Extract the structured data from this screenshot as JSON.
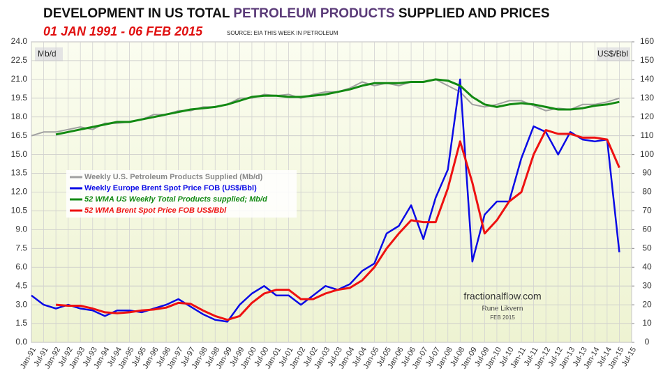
{
  "chart_data": {
    "type": "line",
    "title": [
      "DEVELOPMENT IN US TOTAL ",
      "PETROLEUM PRODUCTS",
      " SUPPLIED AND PRICES"
    ],
    "subtitle": "01 JAN 1991 - 06 FEB 2015",
    "source": "SOURCE: EIA THIS WEEK IN PETROLEUM",
    "y_label": "Mb/d",
    "y2_label": "US$/Bbl",
    "annotations": [
      "fractionalflow.com",
      "Rune Likvern",
      "FEB 2015"
    ],
    "categories": [
      "Jan-91",
      "Jul-91",
      "Jan-92",
      "Jul-92",
      "Jan-93",
      "Jul-93",
      "Jan-94",
      "Jul-94",
      "Jan-95",
      "Jul-95",
      "Jan-96",
      "Jul-96",
      "Jan-97",
      "Jul-97",
      "Jan-98",
      "Jul-98",
      "Jan-99",
      "Jul-99",
      "Jan-00",
      "Jul-00",
      "Jan-01",
      "Jul-01",
      "Jan-02",
      "Jul-02",
      "Jan-03",
      "Jul-03",
      "Jan-04",
      "Jul-04",
      "Jan-05",
      "Jul-05",
      "Jan-06",
      "Jul-06",
      "Jan-07",
      "Jul-07",
      "Jan-08",
      "Jul-08",
      "Jan-09",
      "Jul-09",
      "Jan-10",
      "Jul-10",
      "Jan-11",
      "Jul-11",
      "Jan-12",
      "Jul-12",
      "Jan-13",
      "Jul-13",
      "Jan-14",
      "Jul-14",
      "Jan-15",
      "Jul-15"
    ],
    "ylim": [
      0,
      24
    ],
    "yticks": [
      {
        "value": 0,
        "label": "0.0"
      },
      1.5,
      {
        "value": 3,
        "label": "3.0"
      },
      4.5,
      {
        "value": 6,
        "label": "6.0"
      },
      7.5,
      {
        "value": 9,
        "label": "9.0"
      },
      10.5,
      {
        "value": 12,
        "label": "12.0"
      },
      13.5,
      {
        "value": 15,
        "label": "15.0"
      },
      16.5,
      {
        "value": 18,
        "label": "18.0"
      },
      19.5,
      {
        "value": 21,
        "label": "21.0"
      },
      22.5,
      {
        "value": 24,
        "label": "24.0"
      }
    ],
    "y2lim": [
      0,
      160
    ],
    "y2ticks": [
      0,
      10,
      20,
      30,
      40,
      50,
      60,
      70,
      80,
      90,
      100,
      110,
      120,
      130,
      140,
      150,
      160
    ],
    "grid": true,
    "series": [
      {
        "name": "Weekly U.S. Petroleum Products Supplied  (Mb/d)",
        "color": "#a0a0a0",
        "width": 2,
        "values": [
          16.5,
          16.8,
          16.8,
          17.0,
          17.2,
          17.0,
          17.5,
          17.5,
          17.6,
          17.8,
          18.2,
          18.2,
          18.5,
          18.5,
          18.8,
          18.8,
          19.0,
          19.5,
          19.5,
          19.8,
          19.7,
          19.8,
          19.5,
          19.8,
          20.0,
          20.0,
          20.3,
          20.8,
          20.5,
          20.7,
          20.5,
          20.8,
          20.8,
          21.0,
          20.5,
          20.0,
          19.0,
          18.8,
          19.0,
          19.3,
          19.3,
          18.9,
          18.5,
          18.7,
          18.6,
          19.0,
          19.0,
          19.2,
          19.5,
          null
        ]
      },
      {
        "name": "Weekly Europe Brent Spot Price FOB  (US$/Bbl)",
        "color": "#0a0ae6",
        "width": 2.5,
        "axis": "y2",
        "values": [
          25,
          20,
          18,
          20,
          18,
          17,
          14,
          17,
          17,
          16,
          18,
          20,
          23,
          19,
          15,
          12,
          11,
          20,
          26,
          30,
          25,
          25,
          20,
          25,
          30,
          28,
          31,
          38,
          42,
          58,
          62,
          73,
          55,
          77,
          92,
          140,
          43,
          68,
          75,
          75,
          98,
          115,
          112,
          100,
          112,
          108,
          107,
          108,
          48,
          null
        ]
      },
      {
        "name": "52 WMA US Weekly Total Products supplied; Mb/d",
        "color": "#138a13",
        "width": 3,
        "values": [
          null,
          null,
          16.6,
          16.8,
          17.0,
          17.2,
          17.4,
          17.6,
          17.6,
          17.8,
          18.0,
          18.2,
          18.4,
          18.6,
          18.7,
          18.8,
          19.0,
          19.3,
          19.6,
          19.7,
          19.7,
          19.6,
          19.6,
          19.7,
          19.8,
          20.0,
          20.2,
          20.5,
          20.7,
          20.7,
          20.7,
          20.8,
          20.8,
          21.0,
          20.9,
          20.5,
          19.6,
          19.0,
          18.8,
          19.0,
          19.1,
          19.0,
          18.8,
          18.6,
          18.6,
          18.7,
          18.9,
          19.0,
          19.2,
          null
        ]
      },
      {
        "name": "52 WMA Brent Spot Price FOB US$/Bbl",
        "color": "#ee1111",
        "width": 3,
        "axis": "y2",
        "values": [
          null,
          null,
          20,
          19.5,
          19.5,
          18,
          16,
          15.5,
          16,
          17,
          17.5,
          18.5,
          21,
          20.5,
          17,
          14,
          12,
          14,
          21,
          26,
          28,
          28,
          23,
          23,
          26,
          28,
          29,
          33,
          40,
          50,
          58,
          65,
          64,
          64,
          82,
          107,
          85,
          58,
          65,
          75,
          80,
          100,
          113,
          111,
          111,
          109,
          109,
          108,
          93,
          null
        ]
      }
    ]
  }
}
